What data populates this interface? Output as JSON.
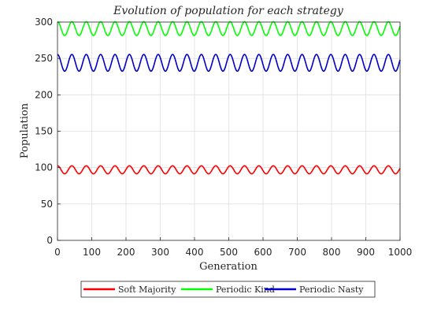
{
  "chart_data": {
    "type": "line",
    "title": "Evolution of population for each strategy",
    "xlabel": "Generation",
    "ylabel": "Population",
    "xlim": [
      0,
      1000
    ],
    "ylim": [
      0,
      300
    ],
    "xticks": [
      0,
      100,
      200,
      300,
      400,
      500,
      600,
      700,
      800,
      900,
      1000
    ],
    "yticks": [
      0,
      50,
      100,
      150,
      200,
      250,
      300
    ],
    "grid": true,
    "legend_position": "bottom",
    "series": [
      {
        "name": "Soft Majority",
        "color": "#ff0000",
        "center": 97,
        "amplitude": 5.5,
        "period": 42,
        "phase": 0,
        "x_range": [
          0,
          1000
        ]
      },
      {
        "name": "Periodic Kind",
        "color": "#00ff00",
        "center": 291,
        "amplitude": 9.5,
        "period": 42,
        "phase": 0,
        "x_range": [
          0,
          1000
        ]
      },
      {
        "name": "Periodic Nasty",
        "color": "#0000cc",
        "center": 244,
        "amplitude": 11.5,
        "period": 42,
        "phase": 0,
        "x_range": [
          0,
          1000
        ]
      }
    ]
  }
}
